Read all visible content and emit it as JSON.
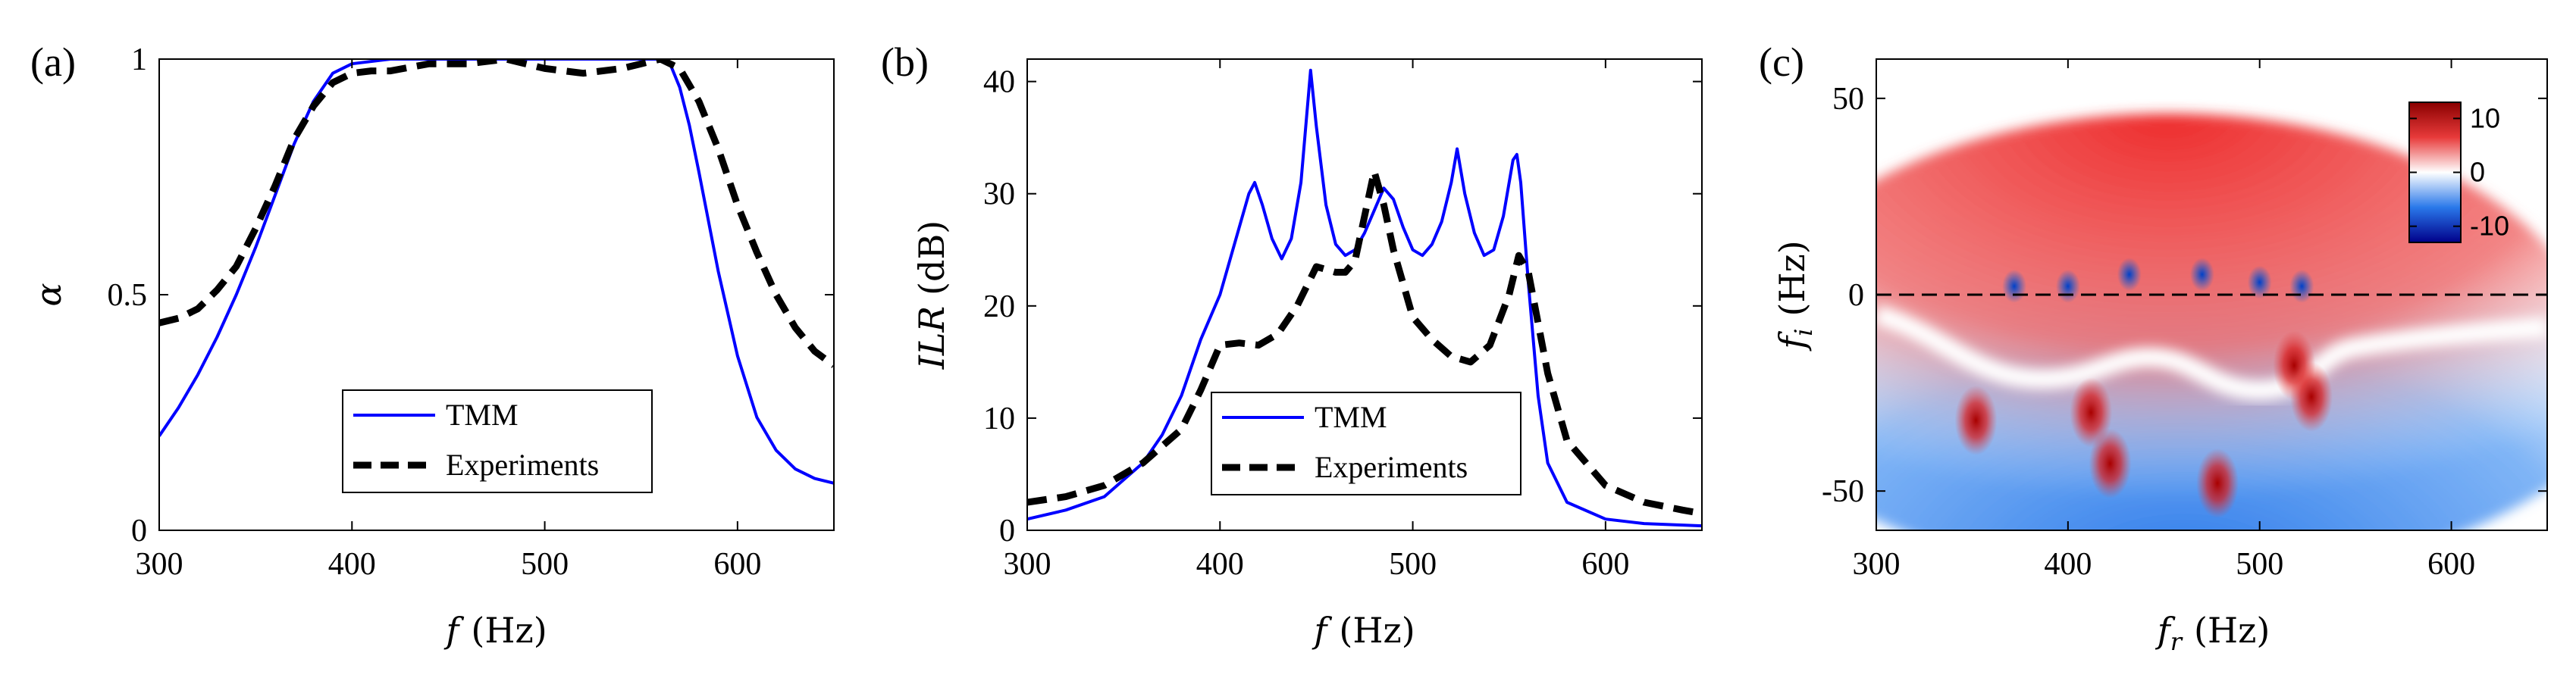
{
  "colors": {
    "tmm": "#0000ff",
    "experiments": "#000000",
    "heat_neg": "#0000b0",
    "heat_pos": "#a00000",
    "white": "#ffffff"
  },
  "chart_data": [
    {
      "panel": "(a)",
      "type": "line",
      "xlabel": "f",
      "xunit": "(Hz)",
      "ylabel": "α",
      "xlim": [
        300,
        650
      ],
      "ylim": [
        0,
        1
      ],
      "xticks": [
        300,
        400,
        500,
        600
      ],
      "yticks": [
        0,
        0.5,
        1
      ],
      "ytick_labels": [
        "0",
        "0.5",
        "1"
      ],
      "legend_position": "bottom-center",
      "series": [
        {
          "name": "TMM",
          "style": "solid",
          "color": "#0000ff",
          "x": [
            300,
            310,
            320,
            330,
            340,
            350,
            360,
            370,
            380,
            390,
            400,
            420,
            450,
            500,
            540,
            560,
            565,
            570,
            575,
            580,
            590,
            600,
            610,
            620,
            630,
            640,
            650
          ],
          "y": [
            0.2,
            0.26,
            0.33,
            0.41,
            0.5,
            0.6,
            0.71,
            0.82,
            0.91,
            0.97,
            0.99,
            1.0,
            1.0,
            1.0,
            1.0,
            1.0,
            0.99,
            0.94,
            0.86,
            0.76,
            0.55,
            0.37,
            0.24,
            0.17,
            0.13,
            0.11,
            0.1
          ]
        },
        {
          "name": "Experiments",
          "style": "dashed",
          "color": "#000000",
          "x": [
            300,
            310,
            320,
            330,
            340,
            350,
            360,
            370,
            380,
            390,
            400,
            410,
            420,
            440,
            460,
            480,
            500,
            520,
            540,
            550,
            560,
            570,
            580,
            590,
            600,
            610,
            620,
            630,
            640,
            650
          ],
          "y": [
            0.44,
            0.45,
            0.47,
            0.51,
            0.56,
            0.64,
            0.73,
            0.83,
            0.9,
            0.95,
            0.97,
            0.975,
            0.975,
            0.99,
            0.99,
            1.0,
            0.98,
            0.97,
            0.98,
            0.99,
            1.0,
            0.98,
            0.91,
            0.81,
            0.69,
            0.59,
            0.5,
            0.43,
            0.38,
            0.35
          ]
        }
      ]
    },
    {
      "panel": "(b)",
      "type": "line",
      "xlabel": "f",
      "xunit": "(Hz)",
      "ylabel": "ILR",
      "yunit": "(dB)",
      "xlim": [
        300,
        650
      ],
      "ylim": [
        0,
        42
      ],
      "xticks": [
        300,
        400,
        500,
        600
      ],
      "yticks": [
        0,
        10,
        20,
        30,
        40
      ],
      "legend_position": "bottom-center",
      "series": [
        {
          "name": "TMM",
          "style": "solid",
          "color": "#0000ff",
          "x": [
            300,
            320,
            340,
            360,
            370,
            380,
            390,
            400,
            405,
            410,
            415,
            418,
            422,
            427,
            432,
            437,
            442,
            445,
            447,
            450,
            455,
            460,
            465,
            470,
            475,
            480,
            485,
            490,
            495,
            500,
            505,
            510,
            515,
            520,
            523,
            527,
            532,
            537,
            542,
            547,
            552,
            554,
            556,
            560,
            565,
            570,
            580,
            600,
            620,
            650
          ],
          "y": [
            1.0,
            1.8,
            3.0,
            6.0,
            8.5,
            12.0,
            17.0,
            21.0,
            24.0,
            27.0,
            30.0,
            31.0,
            29.0,
            26.0,
            24.2,
            26.0,
            31.0,
            37.0,
            41.0,
            36.0,
            29.0,
            25.5,
            24.5,
            25.0,
            26.5,
            28.5,
            30.5,
            29.5,
            27.0,
            25.0,
            24.5,
            25.5,
            27.5,
            31.0,
            34.0,
            30.0,
            26.5,
            24.5,
            25.0,
            28.0,
            33.0,
            33.5,
            31.0,
            22.0,
            12.0,
            6.0,
            2.5,
            1.0,
            0.6,
            0.4
          ]
        },
        {
          "name": "Experiments",
          "style": "dashed",
          "color": "#000000",
          "x": [
            300,
            320,
            340,
            360,
            380,
            390,
            400,
            410,
            420,
            430,
            440,
            450,
            460,
            465,
            470,
            475,
            480,
            485,
            490,
            500,
            510,
            520,
            530,
            540,
            550,
            555,
            560,
            570,
            580,
            600,
            620,
            640,
            650
          ],
          "y": [
            2.5,
            3.0,
            4.0,
            6.0,
            9.0,
            12.5,
            16.5,
            16.7,
            16.5,
            17.5,
            20.0,
            23.5,
            23.0,
            23.0,
            24.0,
            28.0,
            32.0,
            29.0,
            25.0,
            19.0,
            17.0,
            15.5,
            15.0,
            16.5,
            21.0,
            24.5,
            23.0,
            14.0,
            8.0,
            4.0,
            2.5,
            1.8,
            1.5
          ]
        }
      ]
    },
    {
      "panel": "(c)",
      "type": "heatmap",
      "xlabel": "f",
      "xsub": "r",
      "xunit": "(Hz)",
      "ylabel": "f",
      "ysub": "i",
      "yunit": "(Hz)",
      "xlim": [
        300,
        650
      ],
      "ylim": [
        -60,
        60
      ],
      "xticks": [
        300,
        400,
        500,
        600
      ],
      "yticks": [
        -50,
        0,
        50
      ],
      "colorbar": {
        "range": [
          -13,
          13
        ],
        "ticks": [
          10,
          0,
          -10
        ],
        "tick_labels": [
          "10",
          "0",
          "-10"
        ],
        "colormap": "blue-white-red",
        "position": "top-right"
      },
      "dashed_line_y": 0,
      "zeros": [
        [
          372,
          1
        ],
        [
          400,
          1
        ],
        [
          432,
          4
        ],
        [
          470,
          4
        ],
        [
          500,
          2
        ],
        [
          522,
          1
        ]
      ],
      "poles": [
        [
          352,
          -32
        ],
        [
          412,
          -30
        ],
        [
          422,
          -43
        ],
        [
          478,
          -48
        ],
        [
          518,
          -18
        ],
        [
          527,
          -26
        ]
      ]
    }
  ]
}
